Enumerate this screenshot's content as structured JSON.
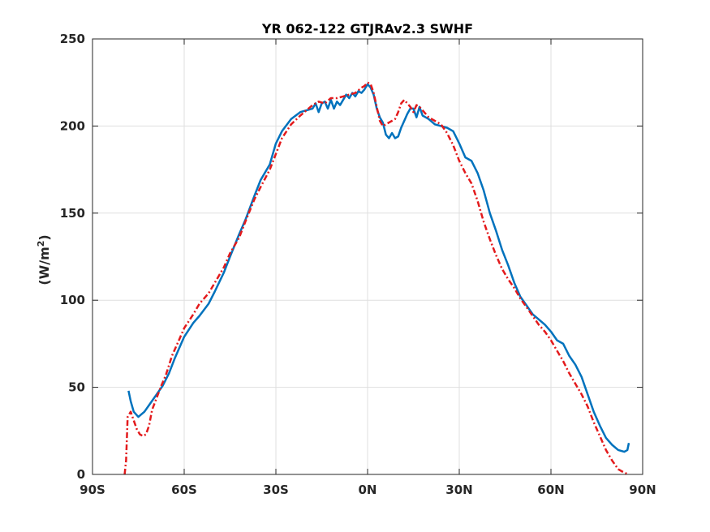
{
  "chart_data": {
    "type": "line",
    "title": "YR 062-122 GTJRAv2.3    SWHF",
    "xlabel": "",
    "ylabel": "(W/m",
    "ylabel_sup": "2",
    "ylabel_close": ")",
    "xlim": [
      -90,
      90
    ],
    "ylim": [
      0,
      250
    ],
    "grid": true,
    "x_ticks": [
      -90,
      -60,
      -30,
      0,
      30,
      60,
      90
    ],
    "x_tick_labels": [
      "90S",
      "60S",
      "30S",
      "0N",
      "30N",
      "60N",
      "90N"
    ],
    "y_ticks": [
      0,
      50,
      100,
      150,
      200,
      250
    ],
    "y_tick_labels": [
      "0",
      "50",
      "100",
      "150",
      "200",
      "250"
    ],
    "series": [
      {
        "color": "#0072BD",
        "style": "solid",
        "x": [
          -78.2,
          -77.5,
          -76.5,
          -75,
          -73,
          -71,
          -69,
          -67,
          -65,
          -63,
          -60,
          -57,
          -55,
          -52,
          -50,
          -47,
          -45,
          -42,
          -40,
          -37,
          -35,
          -32,
          -30,
          -28,
          -25,
          -22,
          -20,
          -18,
          -17,
          -16,
          -15,
          -14,
          -13,
          -12,
          -11,
          -10,
          -9,
          -8,
          -7,
          -6,
          -5,
          -4,
          -3,
          -2,
          -1,
          0,
          1,
          2,
          3,
          4,
          5,
          6,
          7,
          8,
          9,
          10,
          11,
          12,
          13,
          14,
          15,
          16,
          17,
          18,
          19,
          20,
          22,
          24,
          26,
          28,
          30,
          32,
          34,
          36,
          38,
          40,
          42,
          44,
          46,
          48,
          50,
          52,
          54,
          56,
          58,
          60,
          62,
          64,
          66,
          68,
          70,
          72,
          74,
          76,
          78,
          80,
          82,
          84,
          85,
          85.5
        ],
        "values": [
          48,
          42,
          36,
          33,
          36,
          41,
          46,
          51,
          58,
          67,
          79,
          87,
          91,
          98,
          105,
          116,
          125,
          138,
          146,
          160,
          169,
          178,
          190,
          197,
          204,
          208,
          209,
          210,
          213,
          208,
          213,
          214,
          210,
          215,
          210,
          214,
          212,
          215,
          218,
          216,
          219,
          217,
          220,
          219,
          221,
          224,
          222,
          218,
          210,
          205,
          202,
          195,
          193,
          196,
          193,
          194,
          199,
          203,
          207,
          210,
          210,
          205,
          211,
          206,
          205,
          204,
          201,
          200,
          199,
          197,
          190,
          182,
          180,
          173,
          163,
          150,
          140,
          129,
          120,
          110,
          102,
          97,
          92,
          89,
          86,
          82,
          77,
          75,
          68,
          63,
          56,
          46,
          36,
          28,
          21,
          17,
          14,
          13,
          14,
          18
        ]
      },
      {
        "color": "#E31A1C",
        "style": "dashdot",
        "x": [
          -79.5,
          -79,
          -78.5,
          -77.5,
          -76.5,
          -75.5,
          -74.5,
          -73.5,
          -72.5,
          -71.5,
          -70.5,
          -69,
          -67.5,
          -66,
          -64,
          -62,
          -60,
          -57,
          -55,
          -52,
          -50,
          -47,
          -45,
          -42,
          -40,
          -37,
          -35,
          -32,
          -30,
          -28,
          -25,
          -22,
          -20,
          -18,
          -16,
          -14,
          -12,
          -10,
          -8,
          -6,
          -4,
          -2,
          -1,
          0,
          1,
          2,
          3,
          4,
          5,
          6,
          7,
          8,
          9,
          10,
          11,
          12,
          13,
          14,
          15,
          16,
          17,
          18,
          19,
          20,
          22,
          24,
          26,
          28,
          30,
          32,
          34,
          36,
          38,
          40,
          42,
          44,
          46,
          48,
          50,
          52,
          54,
          56,
          58,
          60,
          62,
          64,
          66,
          68,
          70,
          72,
          74,
          76,
          78,
          80,
          82,
          84,
          85.5
        ],
        "values": [
          0,
          8,
          33,
          36,
          31,
          26,
          23,
          22,
          23,
          28,
          37,
          44,
          51,
          57,
          68,
          76,
          84,
          92,
          98,
          104,
          110,
          119,
          127,
          136,
          145,
          158,
          165,
          175,
          184,
          193,
          201,
          206,
          209,
          212,
          214,
          213,
          216,
          216,
          217,
          218,
          219,
          222,
          223,
          225,
          224,
          219,
          211,
          203,
          200,
          201,
          202,
          203,
          204,
          208,
          213,
          215,
          213,
          211,
          208,
          212,
          211,
          209,
          207,
          205,
          203,
          201,
          196,
          189,
          180,
          173,
          167,
          157,
          145,
          135,
          126,
          118,
          112,
          107,
          101,
          96,
          91,
          86,
          82,
          77,
          71,
          65,
          58,
          52,
          46,
          39,
          30,
          22,
          14,
          8,
          3,
          1,
          0
        ]
      }
    ]
  }
}
